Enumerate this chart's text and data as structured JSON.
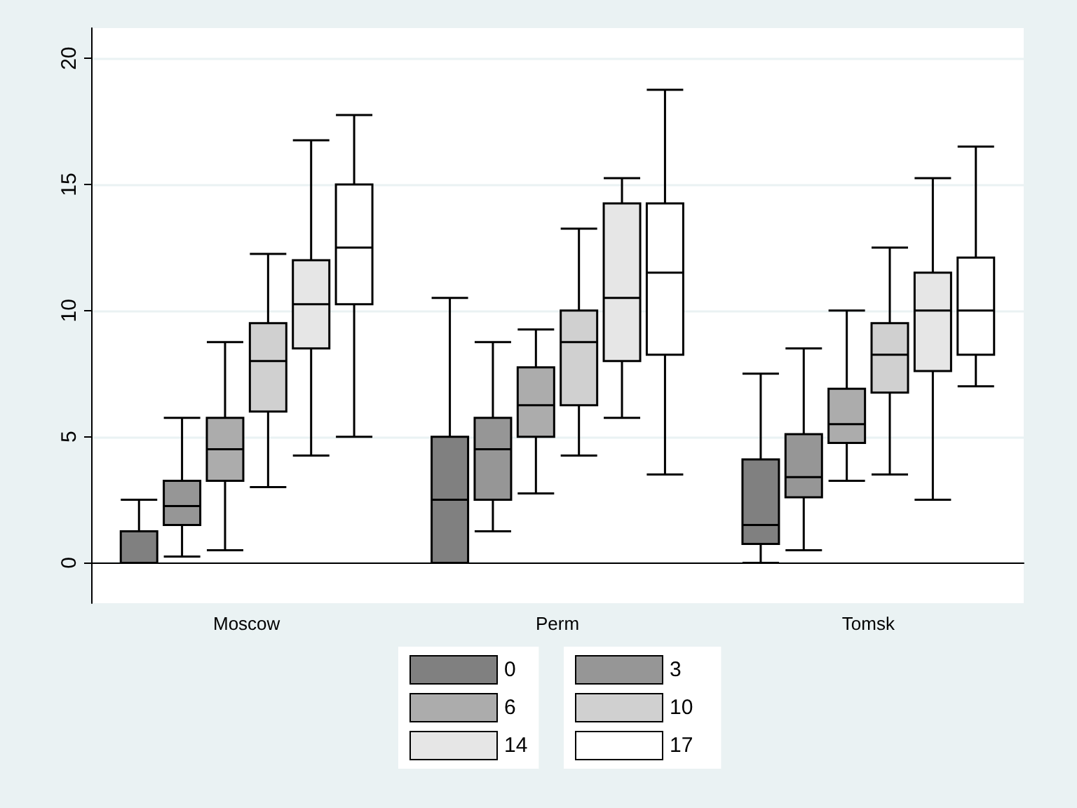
{
  "chart_data": {
    "type": "box",
    "categories": [
      "Moscow",
      "Perm",
      "Tomsk"
    ],
    "ylim": [
      -1.6,
      21.2
    ],
    "yticks": [
      0,
      5,
      10,
      15,
      20
    ],
    "grid": "y",
    "legend": "bottom",
    "series": [
      {
        "name": "0",
        "color": "#808080",
        "boxes": [
          {
            "low": 0,
            "q1": 0,
            "median": 0,
            "q3": 1.25,
            "high": 2.5
          },
          {
            "low": 0,
            "q1": 0,
            "median": 2.5,
            "q3": 5,
            "high": 10.5
          },
          {
            "low": 0,
            "q1": 0.75,
            "median": 1.5,
            "q3": 4.1,
            "high": 7.5
          }
        ]
      },
      {
        "name": "3",
        "color": "#969696",
        "boxes": [
          {
            "low": 0.25,
            "q1": 1.5,
            "median": 2.25,
            "q3": 3.25,
            "high": 5.75
          },
          {
            "low": 1.25,
            "q1": 2.5,
            "median": 4.5,
            "q3": 5.75,
            "high": 8.75
          },
          {
            "low": 0.5,
            "q1": 2.6,
            "median": 3.4,
            "q3": 5.1,
            "high": 8.5
          }
        ]
      },
      {
        "name": "6",
        "color": "#acacac",
        "boxes": [
          {
            "low": 0.5,
            "q1": 3.25,
            "median": 4.5,
            "q3": 5.75,
            "high": 8.75
          },
          {
            "low": 2.75,
            "q1": 5,
            "median": 6.25,
            "q3": 7.75,
            "high": 9.25
          },
          {
            "low": 3.25,
            "q1": 4.75,
            "median": 5.5,
            "q3": 6.9,
            "high": 10
          }
        ]
      },
      {
        "name": "10",
        "color": "#d0d0d0",
        "boxes": [
          {
            "low": 3,
            "q1": 6,
            "median": 8,
            "q3": 9.5,
            "high": 12.25
          },
          {
            "low": 4.25,
            "q1": 6.25,
            "median": 8.75,
            "q3": 10,
            "high": 13.25
          },
          {
            "low": 3.5,
            "q1": 6.75,
            "median": 8.25,
            "q3": 9.5,
            "high": 12.5
          }
        ]
      },
      {
        "name": "14",
        "color": "#e6e6e6",
        "boxes": [
          {
            "low": 4.25,
            "q1": 8.5,
            "median": 10.25,
            "q3": 12,
            "high": 16.75
          },
          {
            "low": 5.75,
            "q1": 8,
            "median": 10.5,
            "q3": 14.25,
            "high": 15.25
          },
          {
            "low": 2.5,
            "q1": 7.6,
            "median": 10,
            "q3": 11.5,
            "high": 15.25
          }
        ]
      },
      {
        "name": "17",
        "color": "#ffffff",
        "boxes": [
          {
            "low": 5,
            "q1": 10.25,
            "median": 12.5,
            "q3": 15,
            "high": 17.75
          },
          {
            "low": 3.5,
            "q1": 8.25,
            "median": 11.5,
            "q3": 14.25,
            "high": 18.75
          },
          {
            "low": 7,
            "q1": 8.25,
            "median": 10,
            "q3": 12.1,
            "high": 16.5
          }
        ]
      }
    ]
  }
}
